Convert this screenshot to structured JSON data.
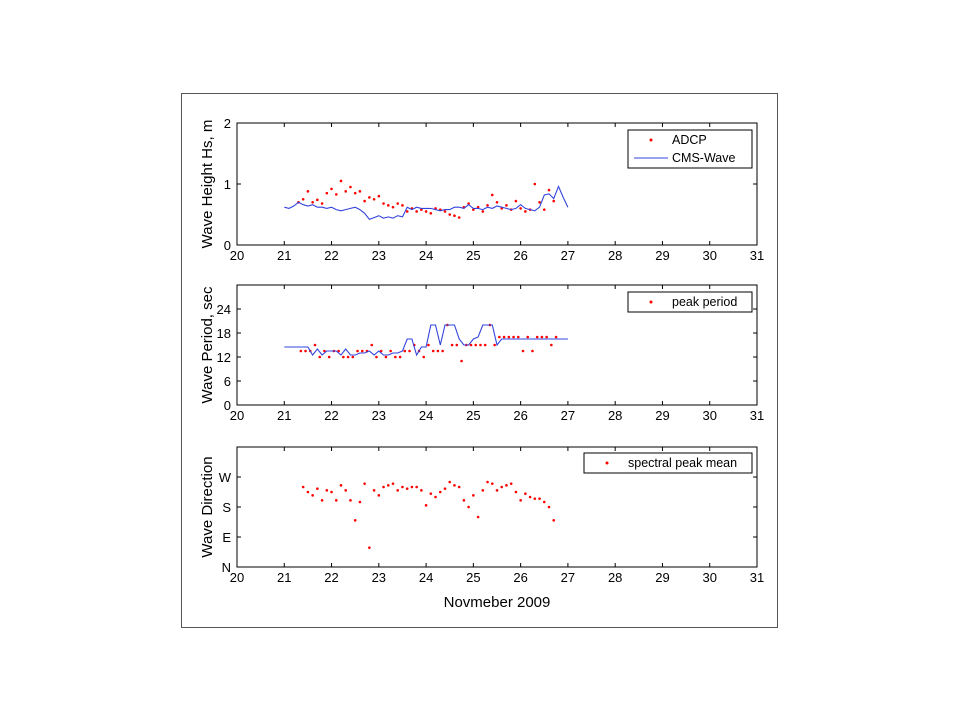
{
  "chart_data": [
    {
      "type": "line",
      "ylabel": "Wave Height Hs, m",
      "xlim": [
        20,
        31
      ],
      "ylim": [
        0,
        2
      ],
      "xticks": [
        "20",
        "21",
        "22",
        "23",
        "24",
        "25",
        "26",
        "27",
        "28",
        "29",
        "30",
        "31"
      ],
      "yticks": [
        "0",
        "1",
        "2"
      ],
      "ytick_values": [
        0,
        1,
        2
      ],
      "legend_position": "top-right",
      "series": [
        {
          "name": "ADCP",
          "marker": "dot",
          "color": "#ff0000",
          "x": [
            21.3,
            21.4,
            21.5,
            21.6,
            21.7,
            21.8,
            21.9,
            22.0,
            22.1,
            22.2,
            22.3,
            22.4,
            22.5,
            22.6,
            22.7,
            22.8,
            22.9,
            23.0,
            23.1,
            23.2,
            23.3,
            23.4,
            23.5,
            23.6,
            23.7,
            23.8,
            23.9,
            24.0,
            24.1,
            24.2,
            24.3,
            24.4,
            24.5,
            24.6,
            24.7,
            24.8,
            24.9,
            25.0,
            25.1,
            25.2,
            25.3,
            25.4,
            25.5,
            25.6,
            25.7,
            25.8,
            25.9,
            26.0,
            26.1,
            26.2,
            26.3,
            26.4,
            26.5,
            26.6,
            26.7
          ],
          "y": [
            0.7,
            0.75,
            0.88,
            0.7,
            0.74,
            0.68,
            0.85,
            0.92,
            0.83,
            1.05,
            0.88,
            0.95,
            0.85,
            0.88,
            0.72,
            0.78,
            0.75,
            0.8,
            0.68,
            0.65,
            0.62,
            0.68,
            0.65,
            0.55,
            0.6,
            0.55,
            0.58,
            0.55,
            0.52,
            0.6,
            0.58,
            0.55,
            0.5,
            0.48,
            0.45,
            0.62,
            0.68,
            0.58,
            0.62,
            0.55,
            0.65,
            0.82,
            0.7,
            0.6,
            0.65,
            0.58,
            0.72,
            0.6,
            0.55,
            0.58,
            1.0,
            0.7,
            0.58,
            0.9,
            0.72
          ]
        },
        {
          "name": "CMS-Wave",
          "marker": "line",
          "color": "#3344dd",
          "x": [
            21.0,
            21.1,
            21.2,
            21.3,
            21.4,
            21.5,
            21.6,
            21.7,
            21.8,
            21.9,
            22.0,
            22.1,
            22.2,
            22.3,
            22.4,
            22.5,
            22.6,
            22.7,
            22.8,
            22.9,
            23.0,
            23.1,
            23.2,
            23.3,
            23.4,
            23.5,
            23.6,
            23.7,
            23.8,
            23.9,
            24.0,
            24.1,
            24.2,
            24.3,
            24.4,
            24.5,
            24.6,
            24.7,
            24.8,
            24.9,
            25.0,
            25.1,
            25.2,
            25.3,
            25.4,
            25.5,
            25.6,
            25.7,
            25.8,
            25.9,
            26.0,
            26.1,
            26.2,
            26.3,
            26.4,
            26.5,
            26.6,
            26.7,
            26.8,
            26.9,
            27.0
          ],
          "y": [
            0.62,
            0.6,
            0.64,
            0.7,
            0.66,
            0.64,
            0.66,
            0.62,
            0.62,
            0.6,
            0.62,
            0.58,
            0.56,
            0.58,
            0.6,
            0.62,
            0.58,
            0.52,
            0.42,
            0.45,
            0.48,
            0.44,
            0.46,
            0.44,
            0.48,
            0.46,
            0.62,
            0.58,
            0.62,
            0.6,
            0.6,
            0.6,
            0.58,
            0.56,
            0.58,
            0.58,
            0.62,
            0.62,
            0.6,
            0.66,
            0.6,
            0.6,
            0.58,
            0.62,
            0.6,
            0.64,
            0.62,
            0.6,
            0.58,
            0.6,
            0.66,
            0.6,
            0.58,
            0.56,
            0.62,
            0.82,
            0.84,
            0.76,
            0.96,
            0.78,
            0.62
          ]
        }
      ]
    },
    {
      "type": "line",
      "ylabel": "Wave Period, sec",
      "xlim": [
        20,
        31
      ],
      "ylim": [
        0,
        30
      ],
      "xticks": [
        "20",
        "21",
        "22",
        "23",
        "24",
        "25",
        "26",
        "27",
        "28",
        "29",
        "30",
        "31"
      ],
      "yticks": [
        "0",
        "6",
        "12",
        "18",
        "24"
      ],
      "ytick_values": [
        0,
        6,
        12,
        18,
        24
      ],
      "legend_position": "top-right",
      "series": [
        {
          "name": "peak period",
          "marker": "dot",
          "color": "#ff0000",
          "x": [
            21.35,
            21.45,
            21.55,
            21.65,
            21.75,
            21.85,
            21.95,
            22.05,
            22.15,
            22.25,
            22.35,
            22.45,
            22.55,
            22.65,
            22.75,
            22.85,
            22.95,
            23.05,
            23.15,
            23.25,
            23.35,
            23.45,
            23.55,
            23.65,
            23.75,
            23.85,
            23.95,
            24.05,
            24.15,
            24.25,
            24.35,
            24.45,
            24.55,
            24.65,
            24.75,
            24.85,
            24.95,
            25.05,
            25.15,
            25.25,
            25.35,
            25.45,
            25.55,
            25.65,
            25.75,
            25.85,
            25.95,
            26.05,
            26.15,
            26.25,
            26.35,
            26.45,
            26.55,
            26.65,
            26.75
          ],
          "y": [
            13.5,
            13.5,
            13.5,
            15,
            12,
            13.5,
            12,
            13.5,
            13.5,
            12,
            12,
            12,
            13.5,
            13.5,
            13.5,
            15,
            12,
            13.5,
            12,
            13.5,
            12,
            12,
            13.5,
            13.5,
            15,
            13.5,
            12,
            15,
            13.5,
            13.5,
            13.5,
            20,
            15,
            15,
            11,
            15,
            15,
            15,
            15,
            15,
            20,
            15,
            17,
            17,
            17,
            17,
            17,
            13.5,
            17,
            13.5,
            17,
            17,
            17,
            15,
            17
          ]
        },
        {
          "name": "",
          "marker": "line",
          "color": "#3344dd",
          "x": [
            21.0,
            21.2,
            21.4,
            21.5,
            21.6,
            21.7,
            21.8,
            21.9,
            22.0,
            22.1,
            22.2,
            22.3,
            22.4,
            22.5,
            22.6,
            22.7,
            22.8,
            22.9,
            23.0,
            23.1,
            23.2,
            23.3,
            23.4,
            23.5,
            23.6,
            23.7,
            23.8,
            23.9,
            24.0,
            24.1,
            24.2,
            24.3,
            24.4,
            24.5,
            24.6,
            24.7,
            24.8,
            24.9,
            25.0,
            25.1,
            25.2,
            25.3,
            25.4,
            25.5,
            25.6,
            25.7,
            25.8,
            26.0,
            26.2,
            26.5,
            27.0
          ],
          "y": [
            14.5,
            14.5,
            14.5,
            14.5,
            12.5,
            14.0,
            12.5,
            13.5,
            13.5,
            13.5,
            12.5,
            14.0,
            12.5,
            12.5,
            13.0,
            13.0,
            13.5,
            12.5,
            13.5,
            12.5,
            12.5,
            13.0,
            13.0,
            13.5,
            16.5,
            16.5,
            12.5,
            14.5,
            14.5,
            20.0,
            20.0,
            15.0,
            20.0,
            20.0,
            20.0,
            16.5,
            15.0,
            15.0,
            16.5,
            17.0,
            20.0,
            20.0,
            20.0,
            15.0,
            16.5,
            16.5,
            16.5,
            16.5,
            16.5,
            16.5,
            16.5
          ]
        }
      ]
    },
    {
      "type": "scatter",
      "ylabel": "Wave Direction",
      "xlabel": "Novmeber 2009",
      "xlim": [
        20,
        31
      ],
      "ylim": [
        0,
        360
      ],
      "xticks": [
        "20",
        "21",
        "22",
        "23",
        "24",
        "25",
        "26",
        "27",
        "28",
        "29",
        "30",
        "31"
      ],
      "yticks": [
        "N",
        "E",
        "S",
        "W"
      ],
      "ytick_values": [
        0,
        90,
        180,
        270
      ],
      "legend_position": "top-right",
      "series": [
        {
          "name": "spectral peak mean",
          "marker": "dot",
          "color": "#ff0000",
          "x": [
            21.4,
            21.5,
            21.6,
            21.7,
            21.8,
            21.9,
            22.0,
            22.1,
            22.2,
            22.3,
            22.4,
            22.5,
            22.6,
            22.7,
            22.8,
            22.9,
            23.0,
            23.1,
            23.2,
            23.3,
            23.4,
            23.5,
            23.6,
            23.7,
            23.8,
            23.9,
            24.0,
            24.1,
            24.2,
            24.3,
            24.4,
            24.5,
            24.6,
            24.7,
            24.8,
            24.9,
            25.0,
            25.1,
            25.2,
            25.3,
            25.4,
            25.5,
            25.6,
            25.7,
            25.8,
            25.9,
            26.0,
            26.1,
            26.2,
            26.3,
            26.4,
            26.5,
            26.6,
            26.7
          ],
          "y": [
            240,
            225,
            215,
            235,
            200,
            230,
            225,
            200,
            245,
            230,
            200,
            140,
            195,
            250,
            58,
            230,
            215,
            240,
            245,
            250,
            230,
            240,
            235,
            240,
            240,
            230,
            185,
            220,
            210,
            225,
            235,
            255,
            245,
            240,
            200,
            180,
            215,
            150,
            230,
            255,
            250,
            230,
            240,
            245,
            250,
            225,
            200,
            220,
            210,
            205,
            205,
            195,
            180,
            140
          ]
        }
      ]
    }
  ]
}
